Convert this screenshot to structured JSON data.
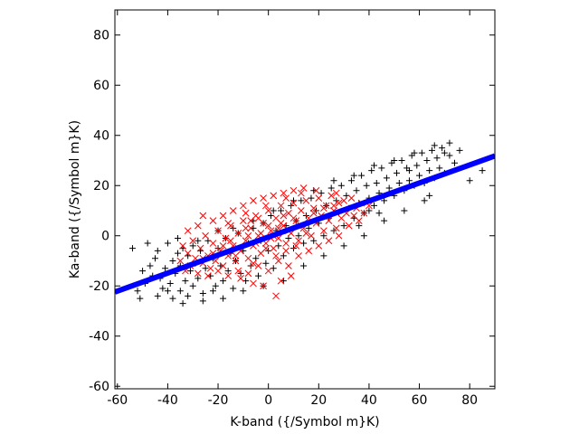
{
  "chart_data": {
    "type": "scatter",
    "xlabel": "K-band ({/Symbol m}K)",
    "ylabel": "Ka-band ({/Symbol m}K)",
    "xlim": [
      -61,
      90
    ],
    "ylim": [
      -61,
      90
    ],
    "xticks": [
      -60,
      -40,
      -20,
      0,
      20,
      40,
      60,
      80
    ],
    "yticks": [
      -60,
      -40,
      -20,
      0,
      20,
      40,
      60,
      80
    ],
    "grid": false,
    "legend": "none",
    "series": [
      {
        "marker": "plus",
        "color": "#000000",
        "points": [
          [
            -54,
            -5
          ],
          [
            -52,
            -22
          ],
          [
            -51,
            -25
          ],
          [
            -50,
            -14
          ],
          [
            -49,
            -19
          ],
          [
            -47,
            -12
          ],
          [
            -46,
            -16
          ],
          [
            -45,
            -9
          ],
          [
            -44,
            -6
          ],
          [
            -43,
            -17
          ],
          [
            -42,
            -21
          ],
          [
            -41,
            -13
          ],
          [
            -40,
            -3
          ],
          [
            -39,
            -19
          ],
          [
            -38,
            -10
          ],
          [
            -37,
            -15
          ],
          [
            -36,
            -7
          ],
          [
            -35,
            -22
          ],
          [
            -35,
            -12
          ],
          [
            -34,
            -27
          ],
          [
            -33,
            -18
          ],
          [
            -32,
            -8
          ],
          [
            -31,
            -14
          ],
          [
            -30,
            -4
          ],
          [
            -30,
            -20
          ],
          [
            -29,
            -11
          ],
          [
            -28,
            -17
          ],
          [
            -27,
            -6
          ],
          [
            -26,
            -23
          ],
          [
            -25,
            -13
          ],
          [
            -24,
            -2
          ],
          [
            -23,
            -16
          ],
          [
            -22,
            -9
          ],
          [
            -21,
            -20
          ],
          [
            -20,
            -5
          ],
          [
            -19,
            -12
          ],
          [
            -18,
            -18
          ],
          [
            -17,
            -1
          ],
          [
            -16,
            -14
          ],
          [
            -15,
            -7
          ],
          [
            -14,
            -21
          ],
          [
            -13,
            -10
          ],
          [
            -12,
            1
          ],
          [
            -11,
            -15
          ],
          [
            -10,
            -6
          ],
          [
            -9,
            -18
          ],
          [
            -8,
            -3
          ],
          [
            -7,
            -12
          ],
          [
            -6,
            3
          ],
          [
            -5,
            -9
          ],
          [
            -4,
            -16
          ],
          [
            -3,
            -2
          ],
          [
            -2,
            5
          ],
          [
            -1,
            -11
          ],
          [
            0,
            -6
          ],
          [
            1,
            8
          ],
          [
            2,
            -13
          ],
          [
            3,
            2
          ],
          [
            4,
            -4
          ],
          [
            5,
            10
          ],
          [
            6,
            -8
          ],
          [
            7,
            4
          ],
          [
            8,
            -1
          ],
          [
            9,
            12
          ],
          [
            10,
            -5
          ],
          [
            11,
            6
          ],
          [
            12,
            0
          ],
          [
            13,
            14
          ],
          [
            14,
            -3
          ],
          [
            15,
            8
          ],
          [
            16,
            3
          ],
          [
            17,
            15
          ],
          [
            18,
            -2
          ],
          [
            19,
            10
          ],
          [
            20,
            5
          ],
          [
            21,
            17
          ],
          [
            22,
            0
          ],
          [
            23,
            12
          ],
          [
            24,
            7
          ],
          [
            25,
            19
          ],
          [
            26,
            2
          ],
          [
            27,
            14
          ],
          [
            28,
            9
          ],
          [
            29,
            20
          ],
          [
            30,
            4
          ],
          [
            31,
            16
          ],
          [
            32,
            11
          ],
          [
            33,
            22
          ],
          [
            34,
            7
          ],
          [
            35,
            18
          ],
          [
            36,
            13
          ],
          [
            37,
            24
          ],
          [
            38,
            9
          ],
          [
            39,
            20
          ],
          [
            40,
            15
          ],
          [
            41,
            26
          ],
          [
            42,
            12
          ],
          [
            43,
            21
          ],
          [
            44,
            17
          ],
          [
            45,
            27
          ],
          [
            46,
            14
          ],
          [
            47,
            23
          ],
          [
            48,
            19
          ],
          [
            49,
            29
          ],
          [
            50,
            16
          ],
          [
            51,
            25
          ],
          [
            52,
            21
          ],
          [
            53,
            30
          ],
          [
            54,
            18
          ],
          [
            55,
            27
          ],
          [
            56,
            22
          ],
          [
            57,
            32
          ],
          [
            58,
            20
          ],
          [
            59,
            28
          ],
          [
            60,
            24
          ],
          [
            61,
            33
          ],
          [
            62,
            21
          ],
          [
            63,
            30
          ],
          [
            64,
            26
          ],
          [
            65,
            34
          ],
          [
            66,
            23
          ],
          [
            67,
            31
          ],
          [
            68,
            27
          ],
          [
            69,
            35
          ],
          [
            70,
            25
          ],
          [
            72,
            32
          ],
          [
            74,
            29
          ],
          [
            76,
            34
          ],
          [
            80,
            22
          ],
          [
            85,
            26
          ],
          [
            -48,
            -3
          ],
          [
            -44,
            -24
          ],
          [
            -38,
            -25
          ],
          [
            -36,
            -1
          ],
          [
            -32,
            -24
          ],
          [
            -28,
            -2
          ],
          [
            -26,
            -26
          ],
          [
            -20,
            2
          ],
          [
            -18,
            -25
          ],
          [
            -14,
            3
          ],
          [
            -10,
            -22
          ],
          [
            -6,
            6
          ],
          [
            -2,
            -20
          ],
          [
            2,
            10
          ],
          [
            6,
            -18
          ],
          [
            10,
            14
          ],
          [
            14,
            -12
          ],
          [
            18,
            18
          ],
          [
            22,
            -8
          ],
          [
            26,
            22
          ],
          [
            30,
            -4
          ],
          [
            34,
            24
          ],
          [
            38,
            0
          ],
          [
            42,
            28
          ],
          [
            46,
            6
          ],
          [
            50,
            30
          ],
          [
            54,
            10
          ],
          [
            58,
            33
          ],
          [
            62,
            14
          ],
          [
            66,
            36
          ],
          [
            72,
            37
          ],
          [
            70,
            33
          ],
          [
            64,
            16
          ],
          [
            56,
            26
          ],
          [
            44,
            9
          ],
          [
            40,
            10
          ],
          [
            36,
            4
          ],
          [
            -40,
            -22
          ],
          [
            -34,
            -5
          ],
          [
            -22,
            -22
          ]
        ]
      },
      {
        "marker": "cross",
        "color": "#ff0000",
        "points": [
          [
            -35,
            -10
          ],
          [
            -34,
            -4
          ],
          [
            -33,
            -14
          ],
          [
            -32,
            -7
          ],
          [
            -31,
            -12
          ],
          [
            -30,
            -2
          ],
          [
            -29,
            -9
          ],
          [
            -28,
            -15
          ],
          [
            -27,
            -5
          ],
          [
            -26,
            -11
          ],
          [
            -25,
            0
          ],
          [
            -24,
            -8
          ],
          [
            -23,
            -13
          ],
          [
            -22,
            -3
          ],
          [
            -21,
            -10
          ],
          [
            -20,
            2
          ],
          [
            -19,
            -6
          ],
          [
            -18,
            -12
          ],
          [
            -17,
            -1
          ],
          [
            -16,
            -8
          ],
          [
            -15,
            4
          ],
          [
            -14,
            -4
          ],
          [
            -13,
            -10
          ],
          [
            -12,
            1
          ],
          [
            -11,
            -6
          ],
          [
            -10,
            6
          ],
          [
            -9,
            -2
          ],
          [
            -8,
            -9
          ],
          [
            -7,
            3
          ],
          [
            -6,
            -4
          ],
          [
            -5,
            8
          ],
          [
            -4,
            0
          ],
          [
            -3,
            -7
          ],
          [
            -2,
            5
          ],
          [
            -1,
            -3
          ],
          [
            0,
            10
          ],
          [
            1,
            2
          ],
          [
            2,
            -5
          ],
          [
            3,
            7
          ],
          [
            4,
            -1
          ],
          [
            5,
            12
          ],
          [
            6,
            4
          ],
          [
            7,
            -3
          ],
          [
            8,
            9
          ],
          [
            9,
            1
          ],
          [
            10,
            13
          ],
          [
            11,
            6
          ],
          [
            12,
            -2
          ],
          [
            13,
            10
          ],
          [
            14,
            3
          ],
          [
            15,
            14
          ],
          [
            16,
            7
          ],
          [
            17,
            0
          ],
          [
            18,
            11
          ],
          [
            19,
            5
          ],
          [
            20,
            15
          ],
          [
            21,
            8
          ],
          [
            22,
            2
          ],
          [
            23,
            12
          ],
          [
            24,
            6
          ],
          [
            25,
            16
          ],
          [
            26,
            10
          ],
          [
            27,
            3
          ],
          [
            28,
            13
          ],
          [
            29,
            7
          ],
          [
            30,
            14
          ],
          [
            31,
            9
          ],
          [
            32,
            4
          ],
          [
            33,
            15
          ],
          [
            34,
            8
          ],
          [
            35,
            11
          ],
          [
            36,
            6
          ],
          [
            37,
            13
          ],
          [
            38,
            9
          ],
          [
            40,
            12
          ],
          [
            -24,
            -16
          ],
          [
            -20,
            -14
          ],
          [
            -16,
            -16
          ],
          [
            -12,
            -14
          ],
          [
            -8,
            -15
          ],
          [
            -4,
            -12
          ],
          [
            0,
            -14
          ],
          [
            4,
            -10
          ],
          [
            8,
            -12
          ],
          [
            12,
            -8
          ],
          [
            -22,
            6
          ],
          [
            -18,
            8
          ],
          [
            -14,
            10
          ],
          [
            -10,
            12
          ],
          [
            -6,
            14
          ],
          [
            -2,
            15
          ],
          [
            2,
            16
          ],
          [
            6,
            17
          ],
          [
            10,
            18
          ],
          [
            14,
            19
          ],
          [
            3,
            -24
          ],
          [
            -2,
            -20
          ],
          [
            5,
            -18
          ],
          [
            -6,
            -19
          ],
          [
            9,
            -16
          ],
          [
            -11,
            -17
          ],
          [
            16,
            -6
          ],
          [
            20,
            -4
          ],
          [
            24,
            -2
          ],
          [
            28,
            0
          ],
          [
            -16,
            5
          ],
          [
            -9,
            9
          ],
          [
            -1,
            12
          ],
          [
            7,
            15
          ],
          [
            13,
            17
          ],
          [
            19,
            18
          ],
          [
            27,
            17
          ],
          [
            -28,
            4
          ],
          [
            -32,
            2
          ],
          [
            -26,
            8
          ],
          [
            -3,
            1
          ],
          [
            1,
            -1
          ],
          [
            4,
            3
          ],
          [
            -5,
            -3
          ],
          [
            8,
            2
          ],
          [
            -8,
            0
          ],
          [
            11,
            -4
          ],
          [
            -12,
            -5
          ],
          [
            15,
            1
          ],
          [
            -15,
            -2
          ],
          [
            6,
            8
          ],
          [
            -7,
            6
          ],
          [
            12,
            4
          ],
          [
            -13,
            -8
          ],
          [
            18,
            9
          ],
          [
            -18,
            -4
          ],
          [
            22,
            11
          ],
          [
            -22,
            -7
          ],
          [
            26,
            12
          ],
          [
            -26,
            -9
          ],
          [
            0,
            4
          ],
          [
            2,
            0
          ],
          [
            -1,
            -5
          ],
          [
            3,
            -8
          ],
          [
            -4,
            7
          ],
          [
            5,
            5
          ],
          [
            -6,
            -11
          ],
          [
            7,
            -6
          ],
          [
            -9,
            3
          ],
          [
            10,
            7
          ]
        ]
      },
      {
        "marker": "line",
        "color": "#0000ff",
        "x": [
          -61,
          90
        ],
        "y": [
          -22.4,
          31.8
        ]
      }
    ]
  }
}
